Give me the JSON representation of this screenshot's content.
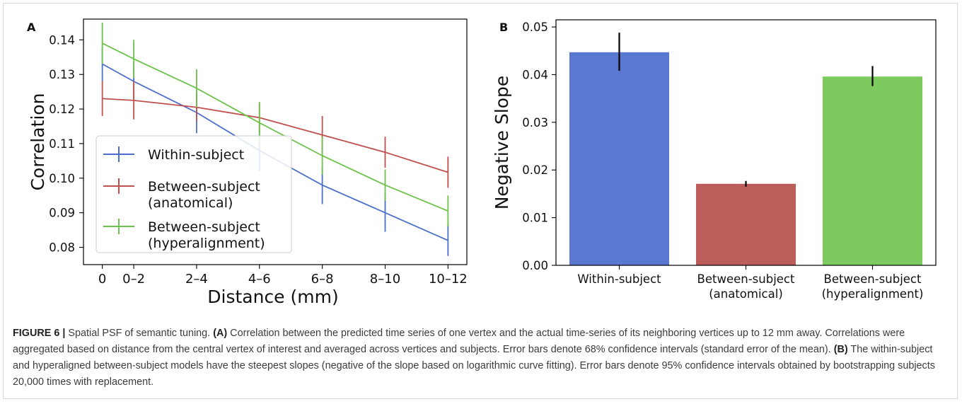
{
  "chart_data": [
    {
      "type": "line",
      "panel_label": "A",
      "xlabel": "Distance (mm)",
      "ylabel": "Correlation",
      "x_ticks": [
        "0",
        "0–2",
        "2–4",
        "4–6",
        "6–8",
        "8–10",
        "10–12"
      ],
      "x_tick_positions": [
        0,
        1,
        3,
        5,
        7,
        9,
        11
      ],
      "ylim": [
        0.075,
        0.146
      ],
      "y_ticks": [
        0.08,
        0.09,
        0.1,
        0.11,
        0.12,
        0.13,
        0.14
      ],
      "y_tick_labels": [
        "0.08",
        "0.09",
        "0.10",
        "0.11",
        "0.12",
        "0.13",
        "0.14"
      ],
      "legend_position": "lower-left",
      "series": [
        {
          "name": "Within-subject",
          "color": "#4c6fcc",
          "x": [
            0,
            1,
            3,
            5,
            7,
            9,
            11
          ],
          "y": [
            0.133,
            0.128,
            0.119,
            0.108,
            0.098,
            0.09,
            0.082
          ],
          "err": [
            0.005,
            0.005,
            0.006,
            0.006,
            0.0055,
            0.0055,
            0.0045
          ]
        },
        {
          "name": "Between-subject (anatomical)",
          "color": "#c0504d",
          "x": [
            0,
            1,
            3,
            5,
            7,
            9,
            11
          ],
          "y": [
            0.123,
            0.1225,
            0.1205,
            0.1175,
            0.1125,
            0.1075,
            0.1017
          ],
          "err": [
            0.005,
            0.0055,
            0.004,
            0.0045,
            0.0055,
            0.0045,
            0.0045
          ]
        },
        {
          "name": "Between-subject (hyperalignment)",
          "color": "#6cc24a",
          "x": [
            0,
            1,
            3,
            5,
            7,
            9,
            11
          ],
          "y": [
            0.139,
            0.1345,
            0.126,
            0.116,
            0.1065,
            0.098,
            0.0905
          ],
          "err": [
            0.006,
            0.0055,
            0.0055,
            0.006,
            0.0055,
            0.0045,
            0.0045
          ]
        }
      ]
    },
    {
      "type": "bar",
      "panel_label": "B",
      "ylabel": "Negative Slope",
      "categories": [
        "Within-subject",
        "Between-subject (anatomical)",
        "Between-subject (hyperalignment)"
      ],
      "category_lines": [
        [
          "Within-subject"
        ],
        [
          "Between-subject",
          "(anatomical)"
        ],
        [
          "Between-subject",
          "(hyperalignment)"
        ]
      ],
      "values": [
        0.0447,
        0.0171,
        0.0396
      ],
      "err_low": [
        0.0408,
        0.0165,
        0.0376
      ],
      "err_high": [
        0.0488,
        0.0177,
        0.0418
      ],
      "colors": [
        "#5a78d0",
        "#bc5d5a",
        "#7dca5e"
      ],
      "ylim": [
        0,
        0.0515
      ],
      "y_ticks": [
        0,
        0.01,
        0.02,
        0.03,
        0.04,
        0.05
      ],
      "y_tick_labels": [
        "0.00",
        "0.01",
        "0.02",
        "0.03",
        "0.04",
        "0.05"
      ]
    }
  ],
  "caption": {
    "label": "FIGURE 6 |",
    "text_1": " Spatial PSF of semantic tuning. ",
    "a_label": "(A)",
    "text_2": " Correlation between the predicted time series of one vertex and the actual time-series of its neighboring vertices up to 12 mm away. Correlations were aggregated based on distance from the central vertex of interest and averaged across vertices and subjects. Error bars denote 68% confidence intervals (standard error of the mean). ",
    "b_label": "(B)",
    "text_3": " The within-subject and hyperaligned between-subject models have the steepest slopes (negative of the slope based on logarithmic curve fitting). Error bars denote 95% confidence intervals obtained by bootstrapping subjects 20,000 times with replacement."
  }
}
